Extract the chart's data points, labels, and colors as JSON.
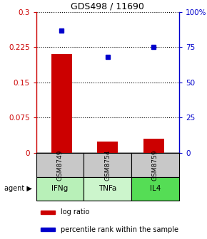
{
  "title": "GDS498 / 11690",
  "samples": [
    "GSM8749",
    "GSM8754",
    "GSM8759"
  ],
  "agents": [
    "IFNg",
    "TNFa",
    "IL4"
  ],
  "log_ratios": [
    0.21,
    0.025,
    0.03
  ],
  "percentile_ranks": [
    87.0,
    68.0,
    75.0
  ],
  "left_ylim": [
    0,
    0.3
  ],
  "right_ylim": [
    0,
    100
  ],
  "left_yticks": [
    0,
    0.075,
    0.15,
    0.225,
    0.3
  ],
  "right_yticks": [
    0,
    25,
    50,
    75,
    100
  ],
  "left_yticklabels": [
    "0",
    "0.075",
    "0.15",
    "0.225",
    "0.3"
  ],
  "right_yticklabels": [
    "0",
    "25",
    "50",
    "75",
    "100%"
  ],
  "bar_color": "#cc0000",
  "dot_color": "#0000cc",
  "sample_bg": "#c8c8c8",
  "agent_bg_colors": [
    "#b8f0b8",
    "#ccf5cc",
    "#55dd55"
  ],
  "legend_bar_label": "log ratio",
  "legend_dot_label": "percentile rank within the sample",
  "bar_width": 0.45,
  "agent_label": "agent"
}
